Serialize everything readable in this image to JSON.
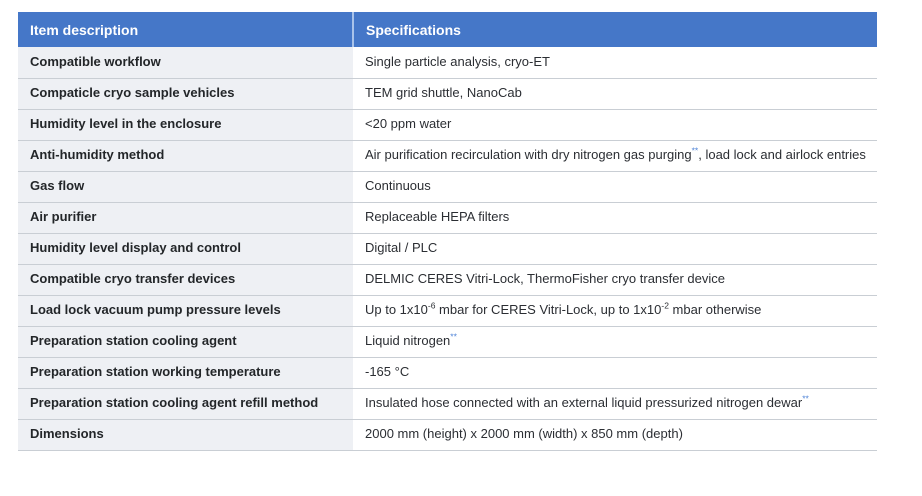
{
  "colors": {
    "header_bg": "#4577c8",
    "header_text": "#ffffff",
    "header_divider": "#a9c3ea",
    "item_bg": "#eef0f4",
    "row_divider": "#c9ced4",
    "item_text": "#232629",
    "spec_text": "#2b2e33",
    "accent": "#4a80d6",
    "page_bg": "#ffffff"
  },
  "table": {
    "header": {
      "col1": "Item description",
      "col2": "Specifications"
    },
    "rows": [
      {
        "item": "Compatible workflow",
        "spec": [
          {
            "t": "Single particle analysis, cryo-ET"
          }
        ]
      },
      {
        "item": "Compaticle cryo sample vehicles",
        "spec": [
          {
            "t": "TEM grid shuttle, NanoCab"
          }
        ]
      },
      {
        "item": "Humidity level in the enclosure",
        "spec": [
          {
            "t": "<20 ppm water"
          }
        ]
      },
      {
        "item": "Anti-humidity method",
        "spec": [
          {
            "t": "Air purification recirculation with dry nitrogen gas purging"
          },
          {
            "t": "**",
            "sup": true,
            "accent": true
          },
          {
            "t": ", load lock and airlock entries"
          }
        ]
      },
      {
        "item": "Gas flow",
        "spec": [
          {
            "t": "Continuous"
          }
        ]
      },
      {
        "item": "Air purifier",
        "spec": [
          {
            "t": "Replaceable HEPA filters"
          }
        ]
      },
      {
        "item": "Humidity level display and control",
        "spec": [
          {
            "t": "Digital / PLC"
          }
        ]
      },
      {
        "item": "Compatible cryo transfer devices",
        "spec": [
          {
            "t": "DELMIC CERES Vitri-Lock,  ThermoFisher cryo transfer device"
          }
        ]
      },
      {
        "item": "Load lock vacuum pump pressure levels",
        "spec": [
          {
            "t": "Up to 1x10"
          },
          {
            "t": "-6",
            "sup": true
          },
          {
            "t": " mbar for CERES Vitri-Lock, up to 1x10"
          },
          {
            "t": "-2",
            "sup": true
          },
          {
            "t": " mbar otherwise"
          }
        ]
      },
      {
        "item": "Preparation station cooling agent",
        "spec": [
          {
            "t": "Liquid nitrogen"
          },
          {
            "t": "**",
            "sup": true,
            "accent": true
          }
        ]
      },
      {
        "item": "Preparation station working temperature",
        "spec": [
          {
            "t": "-165 °C"
          }
        ]
      },
      {
        "item": "Preparation station cooling agent refill method",
        "spec": [
          {
            "t": "Insulated hose connected with an external liquid pressurized nitrogen dewar"
          },
          {
            "t": "**",
            "sup": true,
            "accent": true
          }
        ]
      },
      {
        "item": "Dimensions",
        "spec": [
          {
            "t": "2000 mm (height) x 2000 mm (width) x 850 mm (depth)"
          }
        ]
      }
    ]
  }
}
